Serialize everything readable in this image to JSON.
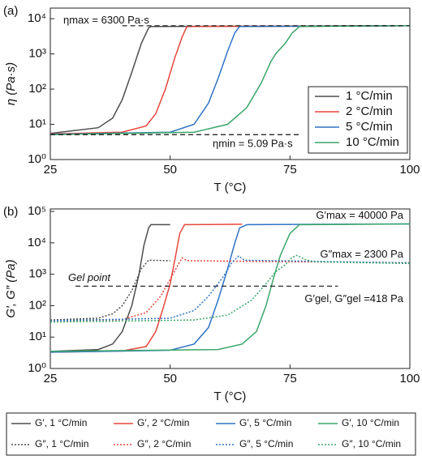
{
  "chart_data": [
    {
      "type": "line",
      "panel_label": "(a)",
      "x_label": "T (°C)",
      "y_label": "η (Pa·s)",
      "yscale": "log",
      "xlim": [
        25,
        100
      ],
      "xticks": [
        25,
        50,
        75,
        100
      ],
      "ylim": [
        1,
        20000
      ],
      "yticks": [
        {
          "value": 1,
          "label": "10⁰"
        },
        {
          "value": 10,
          "label": "10¹"
        },
        {
          "value": 100,
          "label": "10²"
        },
        {
          "value": 1000,
          "label": "10³"
        },
        {
          "value": 10000,
          "label": "10⁴"
        }
      ],
      "legend": "lower right",
      "annotations": [
        {
          "text": "ηmax = 6300 Pa·s",
          "y": 6300
        },
        {
          "text": "ηmin = 5.09 Pa·s",
          "y": 5.09
        }
      ],
      "series": [
        {
          "name": "1 °C/min",
          "color": "#4d4d4d",
          "dash": "solid",
          "x": [
            25,
            35,
            38,
            40,
            42,
            44,
            45.5,
            46,
            100
          ],
          "values": [
            5.5,
            8,
            15,
            50,
            300,
            2000,
            5500,
            6000,
            6300
          ]
        },
        {
          "name": "2 °C/min",
          "color": "#e8453c",
          "dash": "solid",
          "x": [
            25,
            40,
            45,
            47,
            49,
            51,
            52.5,
            53.5,
            100
          ],
          "values": [
            5.3,
            6,
            9,
            20,
            100,
            800,
            3000,
            6000,
            6300
          ]
        },
        {
          "name": "5 °C/min",
          "color": "#2f73c4",
          "dash": "solid",
          "x": [
            25,
            50,
            55,
            58,
            60,
            62,
            63.5,
            64.5,
            100
          ],
          "values": [
            5.2,
            6,
            10,
            40,
            200,
            1200,
            4000,
            6000,
            6300
          ]
        },
        {
          "name": "10 °C/min",
          "color": "#3aa66a",
          "dash": "solid",
          "x": [
            25,
            55,
            62,
            66,
            69,
            71,
            72,
            74,
            75.5,
            77,
            100
          ],
          "values": [
            5.1,
            6,
            10,
            30,
            150,
            600,
            1000,
            2000,
            4000,
            6000,
            6300
          ]
        }
      ]
    },
    {
      "type": "line",
      "panel_label": "(b)",
      "x_label": "T (°C)",
      "y_label": "G′, G″ (Pa)",
      "yscale": "log",
      "xlim": [
        25,
        100
      ],
      "xticks": [
        25,
        50,
        75,
        100
      ],
      "ylim": [
        1,
        120000
      ],
      "yticks": [
        {
          "value": 1,
          "label": "10⁰"
        },
        {
          "value": 10,
          "label": "10¹"
        },
        {
          "value": 100,
          "label": "10²"
        },
        {
          "value": 1000,
          "label": "10³"
        },
        {
          "value": 10000,
          "label": "10⁴"
        },
        {
          "value": 100000,
          "label": "10⁵"
        }
      ],
      "legend": "bottom outside",
      "annotations": [
        {
          "text": "G′max = 40000 Pa",
          "y": 40000
        },
        {
          "text": "G″max = 2300 Pa",
          "y": 2300
        },
        {
          "text": "Gel point",
          "y": 418
        },
        {
          "text": "G′gel, G″gel =418 Pa",
          "y": 418
        }
      ],
      "series": [
        {
          "name": "G′, 1 °C/min",
          "color": "#4d4d4d",
          "dash": "solid",
          "x": [
            25,
            35,
            38,
            40,
            42,
            43.5,
            44.5,
            45.5,
            46,
            50
          ],
          "values": [
            3.5,
            4,
            6,
            15,
            100,
            1000,
            8000,
            30000,
            38000,
            38000
          ]
        },
        {
          "name": "G′, 2 °C/min",
          "color": "#e8453c",
          "dash": "solid",
          "x": [
            25,
            40,
            45,
            47,
            48.5,
            50,
            51,
            52,
            53,
            65
          ],
          "values": [
            3.3,
            3.6,
            5,
            15,
            80,
            500,
            3000,
            20000,
            38000,
            39000
          ]
        },
        {
          "name": "G′, 5 °C/min",
          "color": "#2f73c4",
          "dash": "solid",
          "x": [
            25,
            50,
            55,
            58,
            60,
            62,
            63.5,
            64.5,
            66,
            100
          ],
          "values": [
            3.3,
            3.8,
            6,
            20,
            150,
            1500,
            10000,
            30000,
            38000,
            40000
          ]
        },
        {
          "name": "G′, 10 °C/min",
          "color": "#3aa66a",
          "dash": "solid",
          "x": [
            25,
            60,
            65,
            68,
            70,
            71.5,
            73,
            75,
            77,
            100
          ],
          "values": [
            3.5,
            4,
            6,
            15,
            100,
            700,
            4000,
            20000,
            38000,
            40000
          ]
        },
        {
          "name": "G″, 1 °C/min",
          "color": "#4d4d4d",
          "dash": "dotted",
          "x": [
            25,
            35,
            38,
            40,
            42,
            44,
            45.5,
            50
          ],
          "values": [
            35,
            40,
            55,
            100,
            300,
            1500,
            2800,
            2700
          ]
        },
        {
          "name": "G″, 2 °C/min",
          "color": "#e8453c",
          "dash": "dotted",
          "x": [
            25,
            40,
            45,
            48,
            50,
            51.5,
            52.5,
            53.5,
            100
          ],
          "values": [
            33,
            36,
            60,
            200,
            700,
            1800,
            3300,
            2700,
            2300
          ]
        },
        {
          "name": "G″, 5 °C/min",
          "color": "#2f73c4",
          "dash": "dotted",
          "x": [
            25,
            50,
            55,
            58,
            61,
            63,
            64.3,
            65.5,
            100
          ],
          "values": [
            33,
            40,
            70,
            200,
            800,
            2500,
            3800,
            2800,
            2300
          ]
        },
        {
          "name": "G″, 10 °C/min",
          "color": "#3aa66a",
          "dash": "dotted",
          "x": [
            25,
            55,
            62,
            67,
            70,
            72,
            74,
            75.5,
            76.5,
            78,
            80,
            100
          ],
          "values": [
            30,
            35,
            50,
            150,
            500,
            1200,
            2000,
            3500,
            4000,
            3000,
            2500,
            2200
          ]
        }
      ]
    }
  ]
}
